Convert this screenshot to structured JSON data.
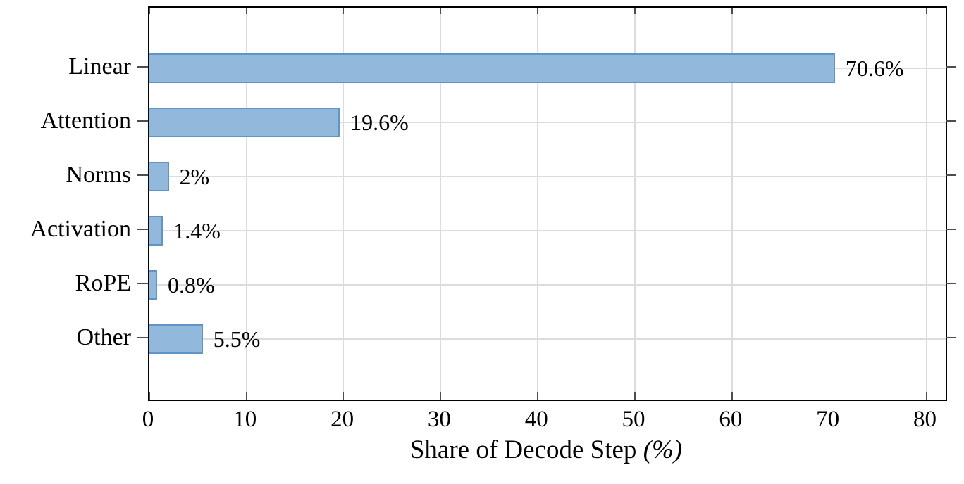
{
  "chart_data": {
    "type": "bar",
    "orientation": "horizontal",
    "title": "",
    "xlabel": "Share of Decode Step",
    "xlabel_unit": "(%)",
    "ylabel": "",
    "categories": [
      "Linear",
      "Attention",
      "Norms",
      "Activation",
      "RoPE",
      "Other"
    ],
    "values": [
      70.6,
      19.6,
      2,
      1.4,
      0.8,
      5.5
    ],
    "value_labels": [
      "70.6%",
      "19.6%",
      "2%",
      "1.4%",
      "0.8%",
      "5.5%"
    ],
    "xlim": [
      0,
      82
    ],
    "xticks": [
      0,
      10,
      20,
      30,
      40,
      50,
      60,
      70,
      80
    ],
    "xtick_labels": [
      "0",
      "10",
      "20",
      "30",
      "40",
      "50",
      "60",
      "70",
      "80"
    ],
    "grid": true,
    "legend": null,
    "colors": {
      "bar_fill": "#92b8dc",
      "bar_border": "#5e94c8",
      "grid": "#dcdcdc",
      "axis": "#000000",
      "tick": "#4d4d4d",
      "text": "#000000"
    }
  }
}
